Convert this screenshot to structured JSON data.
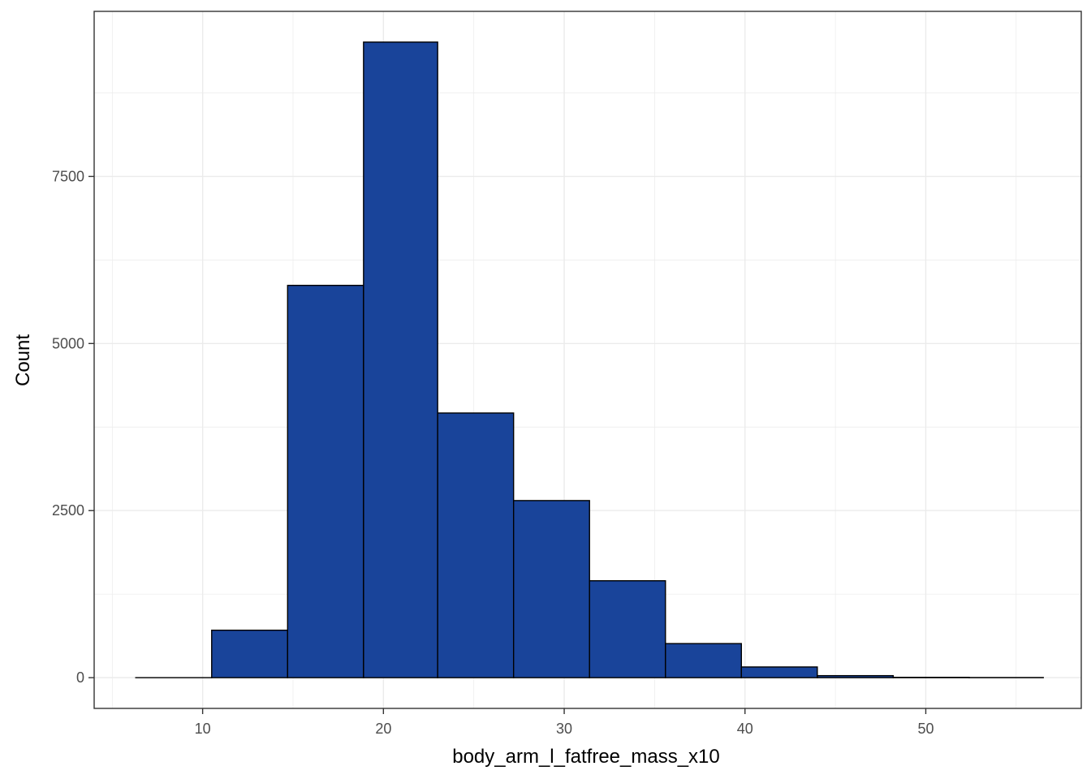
{
  "chart_data": {
    "type": "bar",
    "subtype": "histogram",
    "xlabel": "body_arm_l_fatfree_mass_x10",
    "ylabel": "Count",
    "xlim": [
      4,
      58.6
    ],
    "ylim": [
      -460,
      9970
    ],
    "x_ticks": [
      10,
      20,
      30,
      40,
      50
    ],
    "y_ticks": [
      0,
      2500,
      5000,
      7500
    ],
    "bins": [
      {
        "x0": 6.3,
        "x1": 10.5,
        "count": 0
      },
      {
        "x0": 10.5,
        "x1": 14.7,
        "count": 710
      },
      {
        "x0": 14.7,
        "x1": 18.9,
        "count": 5870
      },
      {
        "x0": 18.9,
        "x1": 23.0,
        "count": 9510
      },
      {
        "x0": 23.0,
        "x1": 27.2,
        "count": 3960
      },
      {
        "x0": 27.2,
        "x1": 31.4,
        "count": 2650
      },
      {
        "x0": 31.4,
        "x1": 35.6,
        "count": 1450
      },
      {
        "x0": 35.6,
        "x1": 39.8,
        "count": 510
      },
      {
        "x0": 39.8,
        "x1": 44.0,
        "count": 160
      },
      {
        "x0": 44.0,
        "x1": 48.2,
        "count": 30
      },
      {
        "x0": 48.2,
        "x1": 52.4,
        "count": 5
      },
      {
        "x0": 52.4,
        "x1": 56.5,
        "count": 2
      }
    ],
    "bar_fill": "#19449A",
    "bar_stroke": "#000000",
    "grid": true,
    "legend": "none"
  }
}
